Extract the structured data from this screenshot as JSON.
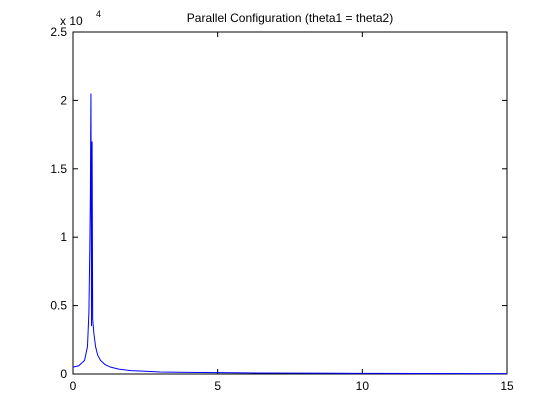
{
  "chart_data": {
    "type": "line",
    "title": "Parallel Configuration (theta1 = theta2)",
    "y_multiplier": "x 10",
    "y_multiplier_exponent": "4",
    "x": [
      0,
      0.2,
      0.4,
      0.5,
      0.55,
      0.58,
      0.6,
      0.62,
      0.64,
      0.66,
      0.68,
      0.72,
      0.78,
      0.85,
      0.95,
      1.1,
      1.3,
      1.6,
      2,
      2.5,
      3,
      4,
      5,
      6,
      8,
      10,
      12,
      15
    ],
    "series": [
      {
        "color": "#0000ff",
        "values": [
          0.05,
          0.06,
          0.1,
          0.2,
          0.45,
          0.9,
          1.3,
          2.05,
          0.35,
          1.7,
          0.4,
          0.3,
          0.2,
          0.14,
          0.1,
          0.07,
          0.05,
          0.035,
          0.025,
          0.02,
          0.015,
          0.012,
          0.01,
          0.008,
          0.006,
          0.005,
          0.004,
          0.003
        ]
      }
    ],
    "xlim": [
      0,
      15
    ],
    "xticks": [
      0,
      5,
      10,
      15
    ],
    "ylim": [
      0,
      2.5
    ],
    "yticks": [
      0,
      0.5,
      1,
      1.5,
      2,
      2.5
    ]
  }
}
